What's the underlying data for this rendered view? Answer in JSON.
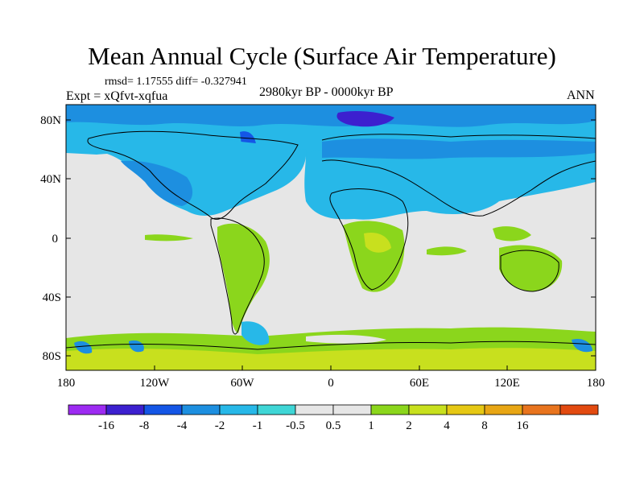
{
  "title": "Mean Annual Cycle (Surface Air Temperature)",
  "stats": "rmsd= 1.17555 diff= -0.327941",
  "experiment": "Expt = xQfvt-xqfua",
  "period": "2980kyr BP - 0000kyr BP",
  "season": "ANN",
  "map": {
    "y_axis_labels": [
      "80N",
      "40N",
      "0",
      "40S",
      "80S"
    ],
    "x_axis_labels": [
      "180",
      "120W",
      "60W",
      "0",
      "60E",
      "120E",
      "180"
    ]
  },
  "legend": {
    "colors": [
      "#9d2bf2",
      "#3c20cf",
      "#1456e6",
      "#1d8fe0",
      "#27b8e8",
      "#3fd6d6",
      "#e6e6e6",
      "#e6e6e6",
      "#8bd61c",
      "#c8e01e",
      "#e6c814",
      "#e8a614",
      "#e8741e",
      "#e24a10"
    ],
    "labels": [
      "-16",
      "-8",
      "-4",
      "-2",
      "-1",
      "-0.5",
      "0.5",
      "1",
      "2",
      "4",
      "8",
      "16"
    ]
  },
  "palette": {
    "land_gray": "#e6e6e6",
    "coast": "#000000"
  }
}
